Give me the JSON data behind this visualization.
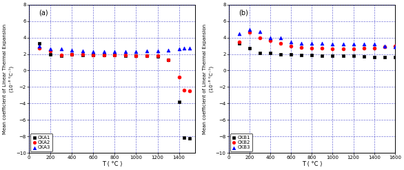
{
  "panel_a": {
    "label": "(a)",
    "CKA1": {
      "T": [
        100,
        200,
        300,
        400,
        500,
        600,
        700,
        800,
        900,
        1000,
        1100,
        1200,
        1300,
        1400,
        1450,
        1500
      ],
      "y": [
        3.3,
        2.0,
        1.8,
        2.0,
        1.9,
        1.9,
        1.9,
        1.9,
        1.8,
        1.8,
        1.8,
        1.7,
        1.3,
        -3.8,
        -8.1,
        -8.2
      ],
      "color": "black",
      "marker": "s"
    },
    "CKA2": {
      "T": [
        100,
        200,
        300,
        400,
        500,
        600,
        700,
        800,
        900,
        1000,
        1100,
        1200,
        1300,
        1400,
        1450,
        1500
      ],
      "y": [
        2.7,
        2.4,
        1.9,
        2.0,
        2.0,
        1.9,
        1.9,
        1.9,
        1.9,
        1.8,
        1.8,
        1.8,
        1.3,
        -0.8,
        -2.4,
        -2.5
      ],
      "color": "red",
      "marker": "o"
    },
    "CKA3": {
      "T": [
        100,
        200,
        300,
        400,
        500,
        600,
        700,
        800,
        900,
        1000,
        1100,
        1200,
        1300,
        1400,
        1450,
        1500
      ],
      "y": [
        3.0,
        2.6,
        2.6,
        2.5,
        2.4,
        2.3,
        2.3,
        2.3,
        2.3,
        2.3,
        2.4,
        2.4,
        2.5,
        2.6,
        2.7,
        2.7
      ],
      "color": "blue",
      "marker": "^"
    },
    "xlabel": "T ( °C )",
    "ylabel_line1": "Mean coefficient of Linear Thermal Expansion",
    "ylabel_line2": "(10⁻⁶ °C⁻¹)",
    "ylim": [
      -10,
      8
    ],
    "xlim": [
      0,
      1550
    ],
    "xticks": [
      0,
      200,
      400,
      600,
      800,
      1000,
      1200,
      1400
    ],
    "yticks": [
      -10,
      -8,
      -6,
      -4,
      -2,
      0,
      2,
      4,
      6,
      8
    ]
  },
  "panel_b": {
    "label": "(b)",
    "CKB1": {
      "T": [
        100,
        200,
        300,
        400,
        500,
        600,
        700,
        800,
        900,
        1000,
        1100,
        1200,
        1300,
        1400,
        1500,
        1600
      ],
      "y": [
        3.3,
        2.7,
        2.1,
        2.1,
        2.0,
        2.0,
        1.9,
        1.9,
        1.8,
        1.8,
        1.8,
        1.8,
        1.7,
        1.6,
        1.6,
        1.6
      ],
      "color": "black",
      "marker": "s"
    },
    "CKB2": {
      "T": [
        100,
        200,
        300,
        400,
        500,
        600,
        700,
        800,
        900,
        1000,
        1100,
        1200,
        1300,
        1400,
        1500,
        1600
      ],
      "y": [
        3.5,
        4.6,
        4.0,
        3.6,
        3.3,
        3.0,
        2.8,
        2.7,
        2.7,
        2.6,
        2.6,
        2.6,
        2.7,
        2.7,
        2.9,
        3.0
      ],
      "color": "red",
      "marker": "o"
    },
    "CKB3": {
      "T": [
        100,
        200,
        300,
        400,
        500,
        600,
        700,
        800,
        900,
        1000,
        1100,
        1200,
        1300,
        1400,
        1500,
        1600
      ],
      "y": [
        4.5,
        5.0,
        4.7,
        4.0,
        4.0,
        3.5,
        3.3,
        3.3,
        3.3,
        3.2,
        3.2,
        3.2,
        3.2,
        3.2,
        3.0,
        2.9
      ],
      "color": "blue",
      "marker": "^"
    },
    "xlabel": "T ( °C )",
    "ylabel_line1": "Mean coefficient of Linear Thermal Expansion",
    "ylabel_line2": "(10⁻⁶ °C⁻¹)",
    "ylim": [
      -10,
      8
    ],
    "xlim": [
      0,
      1600
    ],
    "xticks": [
      0,
      200,
      400,
      600,
      800,
      1000,
      1200,
      1400,
      1600
    ],
    "yticks": [
      -10,
      -8,
      -6,
      -4,
      -2,
      0,
      2,
      4,
      6,
      8
    ]
  },
  "grid_color": "#0000bb",
  "grid_alpha": 0.55,
  "grid_linestyle": "--",
  "grid_linewidth": 0.5,
  "marker_size": 3.5,
  "tick_labelsize": 5,
  "xlabel_fontsize": 6,
  "ylabel_fontsize": 5,
  "legend_fontsize": 5,
  "label_fontsize": 7
}
